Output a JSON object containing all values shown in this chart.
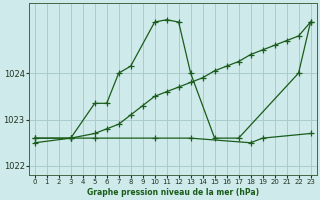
{
  "title": "Graphe pression niveau de la mer (hPa)",
  "background_color": "#ceeaea",
  "grid_color": "#aacccc",
  "line_color": "#1a5c1a",
  "xlim": [
    -0.5,
    23.5
  ],
  "ylim": [
    1021.8,
    1025.5
  ],
  "yticks": [
    1022,
    1023,
    1024
  ],
  "xticks": [
    0,
    1,
    2,
    3,
    4,
    5,
    6,
    7,
    8,
    9,
    10,
    11,
    12,
    13,
    14,
    15,
    16,
    17,
    18,
    19,
    20,
    21,
    22,
    23
  ],
  "series": [
    {
      "x": [
        0,
        1,
        2,
        3,
        4,
        5,
        6,
        7,
        8,
        9,
        10,
        11,
        12,
        13,
        14,
        15,
        16,
        17,
        18,
        19,
        20,
        21,
        22,
        23
      ],
      "y": [
        1022.5,
        null,
        null,
        1022.6,
        null,
        1023.35,
        1023.35,
        1024.0,
        1024.15,
        null,
        1025.1,
        1025.15,
        1025.1,
        1024.0,
        null,
        1022.6,
        null,
        1022.6,
        null,
        null,
        null,
        null,
        1024.0,
        1025.1
      ]
    },
    {
      "x": [
        0,
        1,
        2,
        3,
        4,
        5,
        6,
        7,
        8,
        9,
        10,
        11,
        12,
        13,
        14,
        15,
        16,
        17,
        18,
        19,
        20,
        21,
        22,
        23
      ],
      "y": [
        1022.6,
        null,
        null,
        1022.6,
        null,
        1022.7,
        1022.8,
        1022.9,
        1023.1,
        1023.3,
        1023.5,
        1023.6,
        1023.7,
        1023.8,
        1023.9,
        1024.05,
        1024.15,
        1024.25,
        1024.4,
        1024.5,
        1024.6,
        1024.7,
        1024.8,
        1025.1
      ]
    },
    {
      "x": [
        0,
        1,
        2,
        3,
        4,
        5,
        6,
        7,
        8,
        9,
        10,
        11,
        12,
        13,
        14,
        15,
        16,
        17,
        18,
        19,
        20,
        21,
        22,
        23
      ],
      "y": [
        1022.6,
        null,
        null,
        1022.6,
        null,
        1022.6,
        null,
        null,
        null,
        null,
        1022.6,
        null,
        null,
        1022.6,
        null,
        null,
        null,
        null,
        1022.5,
        1022.6,
        null,
        null,
        null,
        1022.7
      ]
    }
  ]
}
